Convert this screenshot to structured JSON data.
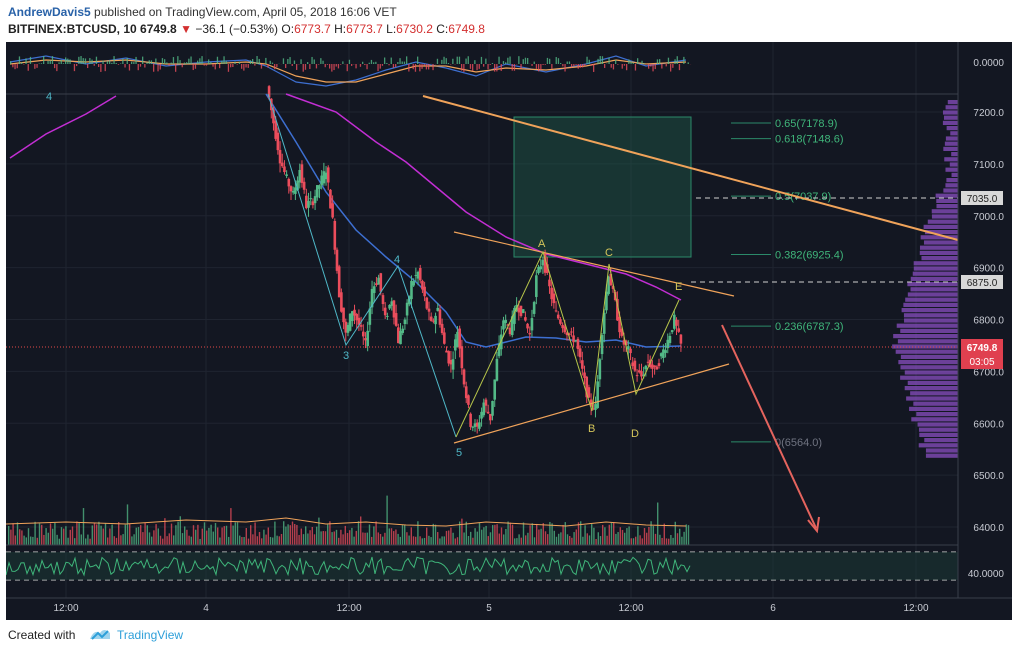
{
  "header": {
    "author": "AndrewDavis5",
    "published_text": "published on TradingView.com, April 05, 2018 16:06 VET",
    "symbol": "BITFINEX:BTCUSD, 10",
    "last": "6749.8",
    "change": "−36.1 (−0.53%)",
    "ohlc": {
      "o_label": "O:",
      "o": "6773.7",
      "h_label": "H:",
      "h": "6773.7",
      "l_label": "L:",
      "l": "6730.2",
      "c_label": "C:",
      "c": "6749.8"
    }
  },
  "colors": {
    "background": "#131722",
    "grid": "#1f2430",
    "up": "#53b987",
    "down": "#eb4d5c",
    "ma_fast": "#3d6fd1",
    "ma_slow": "#c22ed3",
    "trendline": "#f0a35a",
    "projection": "#e5645e",
    "fib_box": "#1e5b4a",
    "wave_label": "#d4c55a",
    "impulse_label": "#4fb8c8"
  },
  "chart_data": {
    "type": "candlestick",
    "price_axis": {
      "ticks": [
        "7200.0",
        "7100.0",
        "7000.0",
        "6900.0",
        "6800.0",
        "6700.0",
        "6600.0",
        "6500.0",
        "6400.0"
      ],
      "ylim": [
        6340,
        7240
      ],
      "current_price": "6749.8",
      "countdown": "03:05",
      "marked_levels": [
        "7035.0",
        "6875.0"
      ]
    },
    "time_axis": {
      "ticks": [
        "12:00",
        "4",
        "12:00",
        "5",
        "12:00",
        "6",
        "12:00"
      ]
    },
    "indicator_axis": {
      "top": "0.0000",
      "bottom": "40.0000"
    },
    "fib_levels": [
      {
        "label": "0.65(7178.9)",
        "value": 7178.9
      },
      {
        "label": "0.618(7148.6)",
        "value": 7148.6
      },
      {
        "label": "0.5(7037.9)",
        "value": 7037.9
      },
      {
        "label": "0.382(6925.4)",
        "value": 6925.4
      },
      {
        "label": "0.236(6787.3)",
        "value": 6787.3
      },
      {
        "label": "0(6564.0)",
        "value": 6564.0
      }
    ],
    "impulse_wave_labels": [
      "4",
      "3",
      "4",
      "5"
    ],
    "correction_labels": [
      "A",
      "B",
      "C",
      "D",
      "E"
    ],
    "price_path": [
      7250,
      7180,
      7110,
      7070,
      7040,
      7090,
      7020,
      7030,
      7060,
      7090,
      6990,
      6850,
      6770,
      6820,
      6790,
      6750,
      6860,
      6880,
      6800,
      6840,
      6760,
      6800,
      6870,
      6890,
      6840,
      6790,
      6820,
      6750,
      6710,
      6780,
      6680,
      6600,
      6590,
      6640,
      6610,
      6720,
      6800,
      6780,
      6830,
      6810,
      6770,
      6880,
      6920,
      6860,
      6810,
      6790,
      6770,
      6760,
      6700,
      6640,
      6630,
      6780,
      6890,
      6830,
      6760,
      6740,
      6700,
      6690,
      6720,
      6700,
      6730,
      6760,
      6800,
      6750
    ]
  },
  "footer": {
    "created_with": "Created with",
    "brand": "TradingView"
  }
}
